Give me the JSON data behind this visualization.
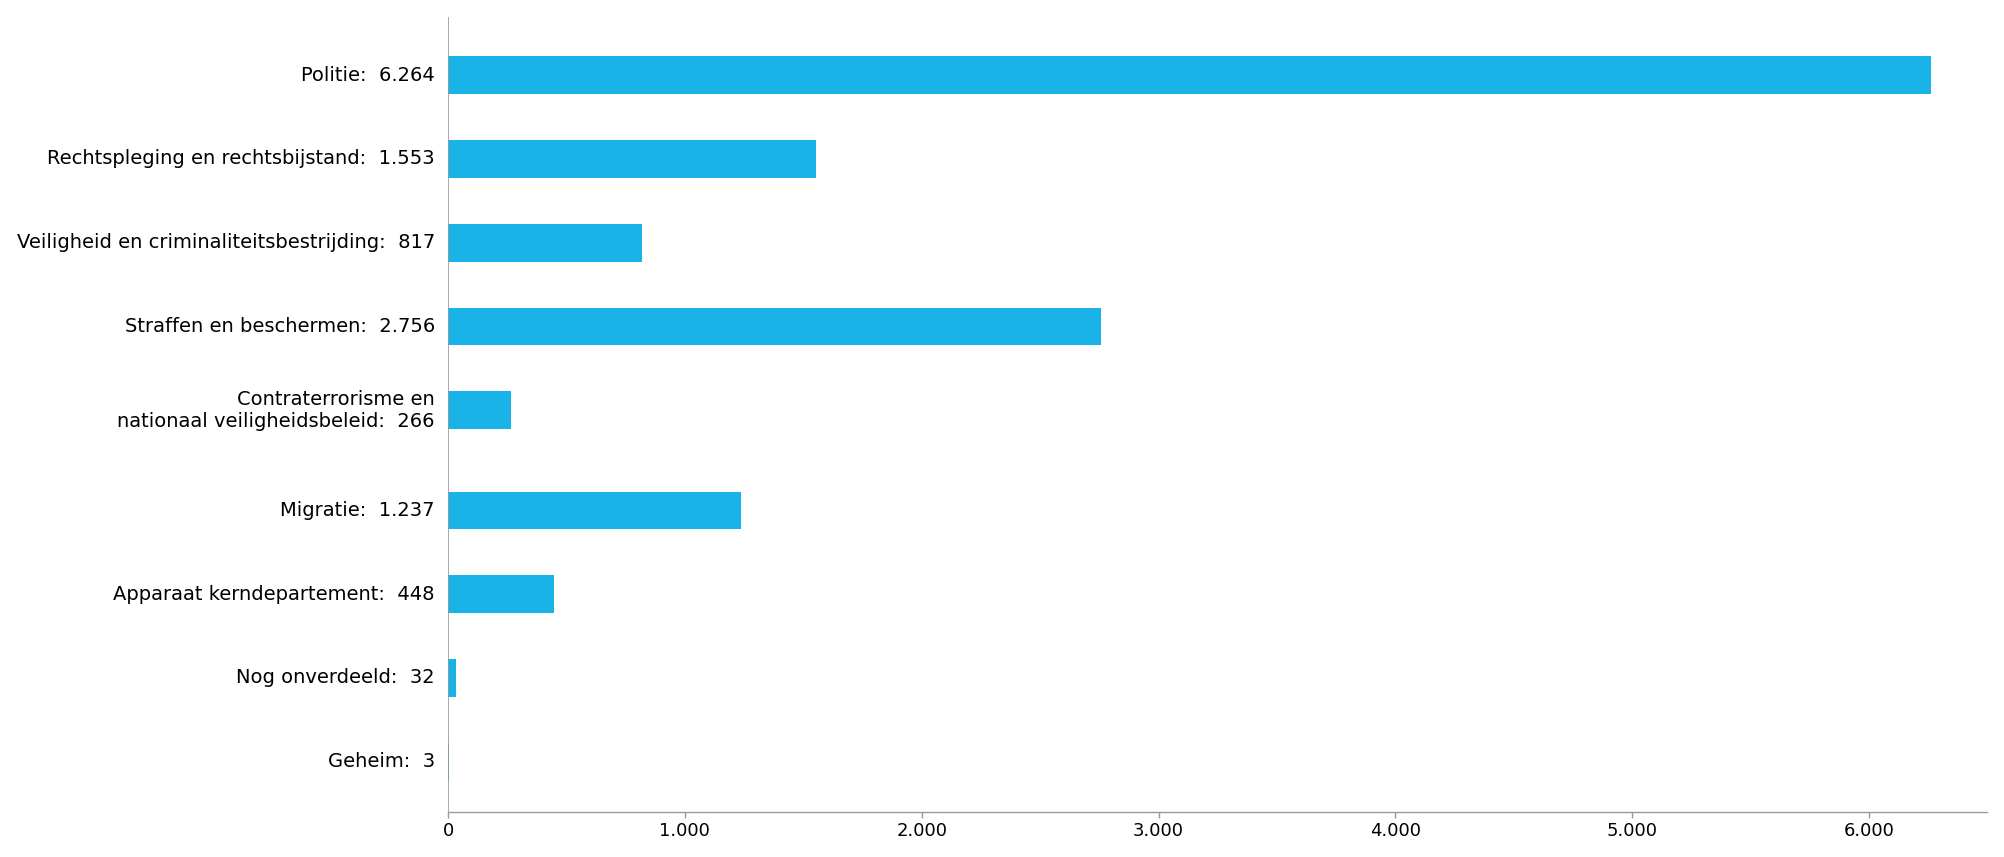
{
  "categories": [
    "Geheim:  3",
    "Nog onverdeeld:  32",
    "Apparaat kerndepartement:  448",
    "Migratie:  1.237",
    "Contraterrorisme en\nnationaal veiligheidsbeleid:  266",
    "Straffen en beschermen:  2.756",
    "Veiligheid en criminaliteitsbestrijding:  817",
    "Rechtspleging en rechtsbijstand:  1.553",
    "Politie:  6.264"
  ],
  "values": [
    3,
    32,
    448,
    1237,
    266,
    2756,
    817,
    1553,
    6264
  ],
  "bar_color": "#1ab3e8",
  "background_color": "#ffffff",
  "xlim": [
    0,
    6500
  ],
  "xticks": [
    0,
    1000,
    2000,
    3000,
    4000,
    5000,
    6000
  ],
  "xtick_labels": [
    "0",
    "1.000",
    "2.000",
    "3.000",
    "4.000",
    "5.000",
    "6.000"
  ],
  "bar_height": 0.45,
  "figsize": [
    20.04,
    8.57
  ],
  "dpi": 100,
  "label_fontsize": 14,
  "tick_fontsize": 13,
  "spine_color": "#999999",
  "y_positions": [
    0,
    1,
    2,
    3,
    4.2,
    5.2,
    6.2,
    7.2,
    8.2
  ],
  "ylim": [
    -0.6,
    8.9
  ]
}
